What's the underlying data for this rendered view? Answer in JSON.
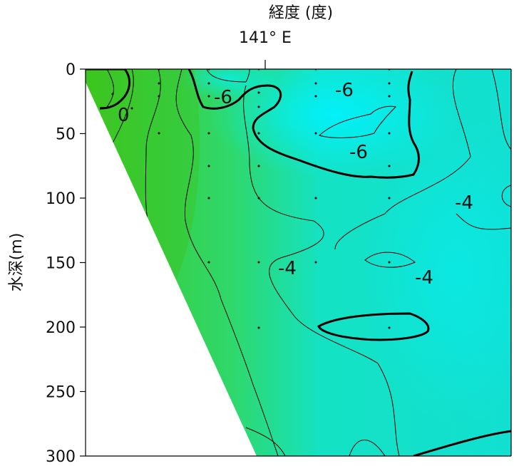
{
  "chart_data": {
    "type": "contour",
    "xlabel": "経度 (度)",
    "ylabel": "水深(m)",
    "x_tick_labels": [
      "141° E"
    ],
    "y_ticks": [
      0,
      50,
      100,
      150,
      200,
      250,
      300
    ],
    "ylim": [
      300,
      0
    ],
    "contour_labels": [
      "0",
      "-6",
      "-6",
      "-6",
      "-4",
      "-4",
      "-4"
    ],
    "sample_depths": [
      [
        20,
        50
      ],
      [
        0,
        25,
        50
      ],
      [
        0,
        25,
        50,
        75,
        100,
        150
      ],
      [
        0,
        25,
        50,
        75,
        100,
        150,
        200
      ],
      [
        0,
        25,
        50,
        75,
        100,
        150
      ],
      [
        0,
        25,
        50,
        75,
        100,
        150,
        200
      ],
      [
        0,
        25,
        50,
        75,
        100
      ]
    ],
    "colors": {
      "shallow_warm": "#33cc22",
      "deep_cold": "#00e8ee",
      "line": "#000000"
    }
  }
}
